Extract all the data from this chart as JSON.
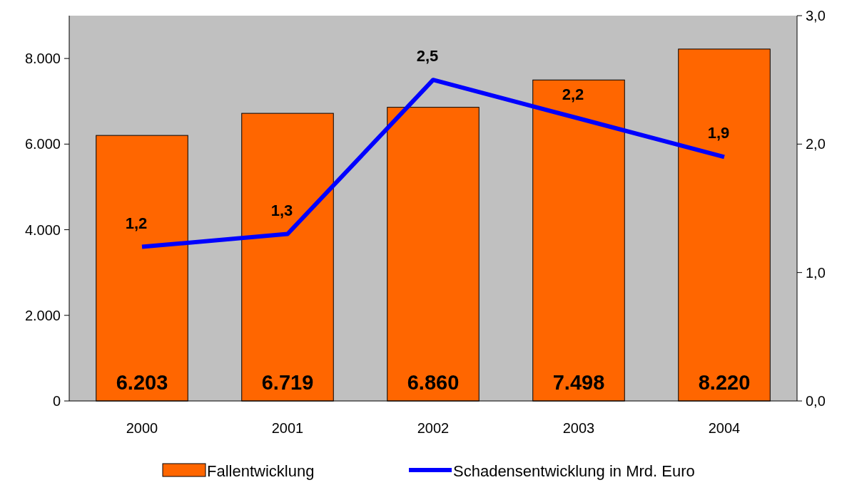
{
  "chart_data": {
    "type": "bar",
    "categories": [
      "2000",
      "2001",
      "2002",
      "2003",
      "2004"
    ],
    "series": [
      {
        "name": "Fallentwicklung",
        "color": "#ff6600",
        "values": [
          6203,
          6719,
          6860,
          7498,
          8220
        ],
        "value_labels": [
          "6.203",
          "6.719",
          "6.860",
          "7.498",
          "8.220"
        ]
      },
      {
        "name": "Schadensentwicklung in Mrd. Euro",
        "type": "line",
        "axis": "y2",
        "color": "#0000ff",
        "values": [
          1.2,
          1.3,
          2.5,
          2.2,
          1.9
        ],
        "value_labels": [
          "1,2",
          "1,3",
          "2,5",
          "2,2",
          "1,9"
        ]
      }
    ],
    "ylim": [
      0,
      9000
    ],
    "yticks": [
      0,
      {
        "value": 2000,
        "label": "2.000"
      },
      {
        "value": 4000,
        "label": "4.000"
      },
      {
        "value": 6000,
        "label": "6.000"
      },
      {
        "value": 8000,
        "label": "8.000"
      }
    ],
    "y2lim": [
      0,
      3
    ],
    "y2ticks": [
      {
        "value": 0,
        "label": "0,0"
      },
      {
        "value": 1,
        "label": "1,0"
      },
      {
        "value": 2,
        "label": "2,0"
      },
      {
        "value": 3,
        "label": "3,0"
      }
    ],
    "grid": false,
    "legend": "bottom",
    "marker": "none",
    "line_style": "solid"
  }
}
